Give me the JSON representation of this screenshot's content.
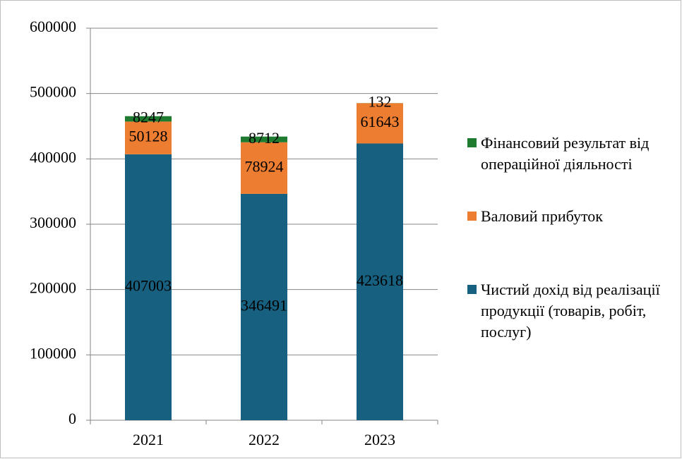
{
  "chart_data": {
    "type": "stacked_bar",
    "categories": [
      "2021",
      "2022",
      "2023"
    ],
    "series": [
      {
        "name": "Чистий дохід від реалізації продукції (товарів, робіт, послуг)",
        "color": "#17607f",
        "values": [
          407003,
          346491,
          423618
        ]
      },
      {
        "name": "Валовий прибуток",
        "color": "#ed7d31",
        "values": [
          50128,
          78924,
          61643
        ]
      },
      {
        "name": "Фінансовий результат від операційної діяльності",
        "color": "#1e7b30",
        "values": [
          8247,
          8712,
          132
        ]
      }
    ],
    "ylim": [
      0,
      600000
    ],
    "yticks": [
      0,
      100000,
      200000,
      300000,
      400000,
      500000,
      600000
    ],
    "grid": true,
    "legend": "right"
  }
}
